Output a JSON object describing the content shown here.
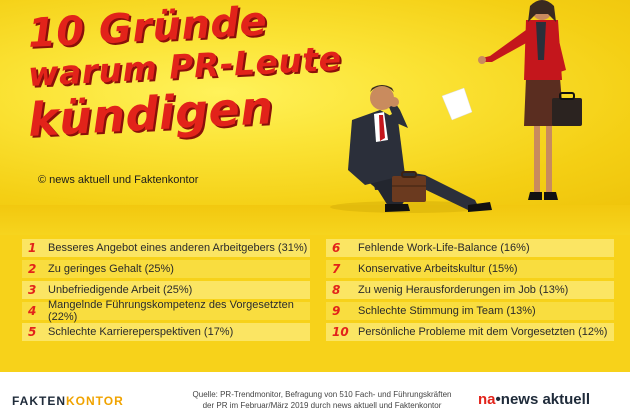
{
  "title": {
    "line1": "10 Gründe",
    "line2": "warum PR-Leute",
    "line3": "kündigen"
  },
  "copyright": "© news aktuell und Faktenkontor",
  "reasons_left": [
    {
      "num": "1",
      "text": "Besseres Angebot eines anderen Arbeitgebers (31%)"
    },
    {
      "num": "2",
      "text": "Zu geringes Gehalt (25%)"
    },
    {
      "num": "3",
      "text": "Unbefriedigende Arbeit (25%)"
    },
    {
      "num": "4",
      "text": "Mangelnde Führungskompetenz des Vorgesetzten (22%)"
    },
    {
      "num": "5",
      "text": "Schlechte Karriereperspektiven (17%)"
    }
  ],
  "reasons_right": [
    {
      "num": "6",
      "text": "Fehlende Work-Life-Balance (16%)"
    },
    {
      "num": "7",
      "text": "Konservative Arbeitskultur (15%)"
    },
    {
      "num": "8",
      "text": "Zu wenig Herausforderungen im Job (13%)"
    },
    {
      "num": "9",
      "text": "Schlechte Stimmung im Team (13%)"
    },
    {
      "num": "10",
      "text": "Persönliche Probleme mit dem Vorgesetzten (12%)"
    }
  ],
  "footer": {
    "logo_left_a": "FAKTEN",
    "logo_left_b": "KONTOR",
    "source_line1": "Quelle: PR-Trendmonitor, Befragung von 510 Fach- und Führungskräften",
    "source_line2": "der PR im Februar/März 2019 durch news aktuell und Faktenkontor",
    "logo_right_a": "na",
    "logo_right_b": "news aktuell"
  },
  "colors": {
    "accent_red": "#e2231a",
    "background_yellow": "#f7d21a"
  }
}
